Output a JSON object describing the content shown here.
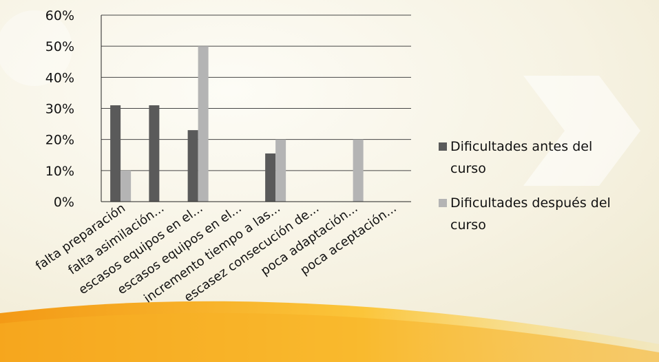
{
  "chart_data": {
    "type": "bar",
    "categories": [
      "falta preparación",
      "falta asimilación...",
      "escasos equipos en el...",
      "escasos equipos en el...",
      "incremento tiempo a las...",
      "escasez consecución de...",
      "poca adaptación...",
      "poca aceptación..."
    ],
    "series": [
      {
        "name": "Dificultades antes del curso",
        "values": [
          31,
          31,
          23,
          0,
          15.5,
          0,
          0,
          0
        ],
        "color": "#5a5a5a"
      },
      {
        "name": "Dificultades después del curso",
        "values": [
          10,
          0,
          50,
          0,
          20,
          0,
          20,
          0
        ],
        "color": "#b4b4b4"
      }
    ],
    "ylim": [
      0,
      60
    ],
    "yticks": [
      "0%",
      "10%",
      "20%",
      "30%",
      "40%",
      "50%",
      "60%"
    ],
    "grid": true,
    "legend_position": "right"
  },
  "legend": {
    "series_1_lines": [
      "Dificultades antes del",
      "curso"
    ],
    "series_2_lines": [
      "Dificultades después del",
      "curso"
    ]
  },
  "colors": {
    "background_light": "#fbf9ef",
    "background_cream": "#f4efd8",
    "accent_orange": "#f4a31c",
    "accent_yellow": "#fdd54a"
  }
}
